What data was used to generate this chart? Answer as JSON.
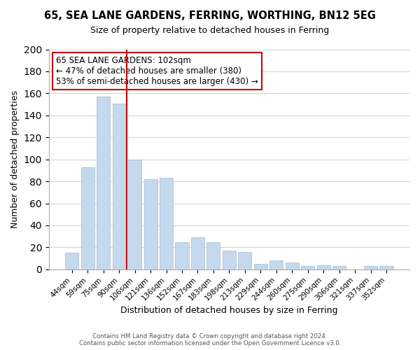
{
  "title": "65, SEA LANE GARDENS, FERRING, WORTHING, BN12 5EG",
  "subtitle": "Size of property relative to detached houses in Ferring",
  "xlabel": "Distribution of detached houses by size in Ferring",
  "ylabel": "Number of detached properties",
  "categories": [
    "44sqm",
    "59sqm",
    "75sqm",
    "90sqm",
    "106sqm",
    "121sqm",
    "136sqm",
    "152sqm",
    "167sqm",
    "183sqm",
    "198sqm",
    "213sqm",
    "229sqm",
    "244sqm",
    "260sqm",
    "275sqm",
    "290sqm",
    "306sqm",
    "321sqm",
    "337sqm",
    "352sqm"
  ],
  "values": [
    15,
    93,
    157,
    151,
    100,
    82,
    83,
    25,
    29,
    25,
    17,
    16,
    5,
    8,
    6,
    3,
    4,
    3,
    0,
    3,
    3
  ],
  "bar_color": "#c5d8ed",
  "bar_edge_color": "#a0bcd0",
  "vline_x": 4,
  "vline_color": "#cc0000",
  "ylim": [
    0,
    200
  ],
  "yticks": [
    0,
    20,
    40,
    60,
    80,
    100,
    120,
    140,
    160,
    180,
    200
  ],
  "annotation_title": "65 SEA LANE GARDENS: 102sqm",
  "annotation_line1": "← 47% of detached houses are smaller (380)",
  "annotation_line2": "53% of semi-detached houses are larger (430) →",
  "annotation_box_color": "#ffffff",
  "annotation_box_edge": "#cc0000",
  "footer1": "Contains HM Land Registry data © Crown copyright and database right 2024.",
  "footer2": "Contains public sector information licensed under the Open Government Licence v3.0.",
  "background_color": "#ffffff",
  "grid_color": "#ccd9e8"
}
